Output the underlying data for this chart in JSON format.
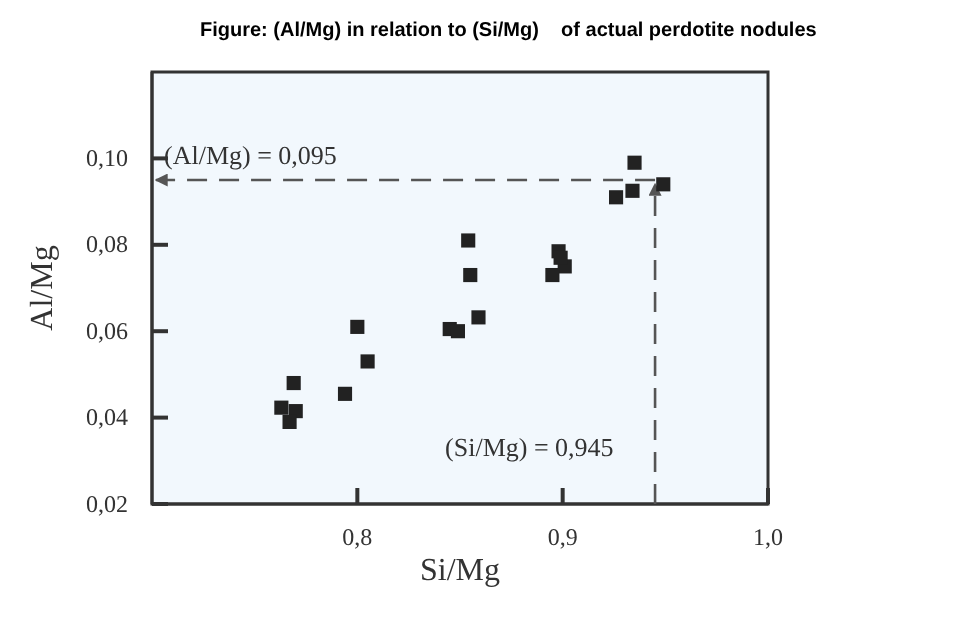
{
  "chart_data": {
    "type": "scatter",
    "title": "Figure: (Al/Mg) in relation to (Si/Mg)    of actual perdotite nodules",
    "xlabel": "Si/Mg",
    "ylabel": "Al/Mg",
    "xlim": [
      0.7,
      1.0
    ],
    "ylim": [
      0.02,
      0.12
    ],
    "xticks": [
      {
        "value": 0.8,
        "label": "0,8"
      },
      {
        "value": 0.9,
        "label": "0,9"
      },
      {
        "value": 1.0,
        "label": "1,0"
      }
    ],
    "yticks": [
      {
        "value": 0.02,
        "label": "0,02"
      },
      {
        "value": 0.04,
        "label": "0,04"
      },
      {
        "value": 0.06,
        "label": "0,06"
      },
      {
        "value": 0.08,
        "label": "0,08"
      },
      {
        "value": 0.1,
        "label": "0,10"
      }
    ],
    "marker": "square",
    "grid": false,
    "series": [
      {
        "color": "#222222",
        "x": [
          0.763,
          0.769,
          0.77,
          0.767,
          0.794,
          0.8,
          0.805,
          0.845,
          0.849,
          0.854,
          0.855,
          0.859,
          0.898,
          0.901,
          0.895,
          0.899,
          0.926,
          0.934,
          0.935,
          0.949
        ],
        "values": [
          0.0423,
          0.048,
          0.0415,
          0.039,
          0.0455,
          0.061,
          0.053,
          0.0605,
          0.06,
          0.081,
          0.073,
          0.0632,
          0.0785,
          0.075,
          0.073,
          0.077,
          0.091,
          0.0925,
          0.099,
          0.094
        ]
      }
    ],
    "ref_lines": [
      {
        "axis": "x",
        "value": 0.945,
        "label": "(Si/Mg) = 0,945",
        "line_style": "dashed",
        "color": "#555555"
      },
      {
        "axis": "y",
        "value": 0.095,
        "label": "(Al/Mg) = 0,095",
        "line_style": "dashed",
        "color": "#555555"
      }
    ]
  }
}
